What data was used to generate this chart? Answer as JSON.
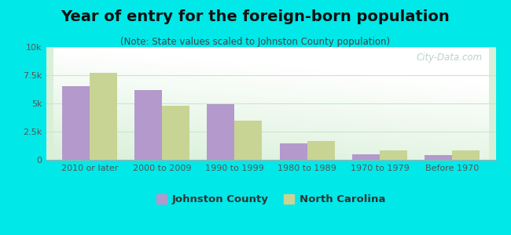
{
  "title": "Year of entry for the foreign-born population",
  "subtitle": "(Note: State values scaled to Johnston County population)",
  "categories": [
    "2010 or later",
    "2000 to 2009",
    "1990 to 1999",
    "1980 to 1989",
    "1970 to 1979",
    "Before 1970"
  ],
  "johnston_values": [
    6500,
    6200,
    4950,
    1450,
    500,
    420
  ],
  "nc_values": [
    7700,
    4800,
    3500,
    1700,
    850,
    850
  ],
  "johnston_color": "#b399cc",
  "nc_color": "#c8d494",
  "background_outer": "#00e8e8",
  "background_inner_top": "#ffffff",
  "background_inner_bottom": "#d8f0d8",
  "ylim": [
    0,
    10000
  ],
  "yticks": [
    0,
    2500,
    5000,
    7500,
    10000
  ],
  "ytick_labels": [
    "0",
    "2.5k",
    "5k",
    "7.5k",
    "10k"
  ],
  "bar_width": 0.38,
  "watermark": "City-Data.com",
  "legend_labels": [
    "Johnston County",
    "North Carolina"
  ],
  "grid_color": "#c8e8c8",
  "tick_color": "#555555",
  "title_fontsize": 14,
  "subtitle_fontsize": 8.5,
  "tick_fontsize": 8
}
